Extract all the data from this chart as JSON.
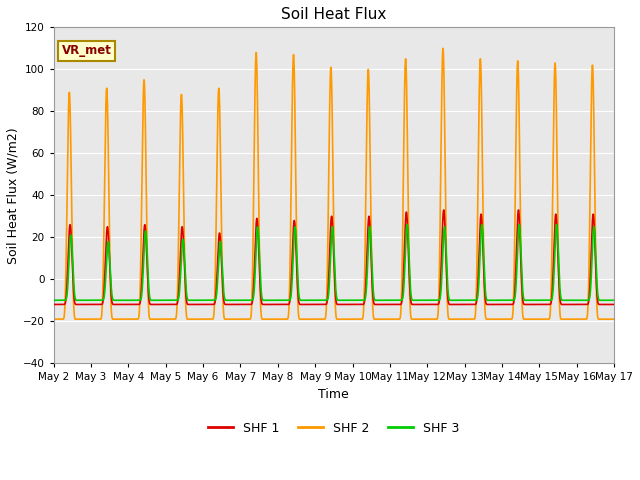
{
  "title": "Soil Heat Flux",
  "xlabel": "Time",
  "ylabel": "Soil Heat Flux (W/m2)",
  "ylim": [
    -40,
    120
  ],
  "yticks": [
    -40,
    -20,
    0,
    20,
    40,
    60,
    80,
    100,
    120
  ],
  "date_labels": [
    "May 2",
    "May 3",
    "May 4",
    "May 5",
    "May 6",
    "May 7",
    "May 8",
    "May 9",
    "May 10",
    "May 11",
    "May 12",
    "May 13",
    "May 14",
    "May 15",
    "May 16",
    "May 17"
  ],
  "colors": {
    "SHF 1": "#dd0000",
    "SHF 2": "#ff9900",
    "SHF 3": "#00cc00"
  },
  "bg_color": "#e8e8e8",
  "fig_bg": "#ffffff",
  "linewidth": 1.2,
  "n_days": 15,
  "points_per_day": 288,
  "orange_peaks": [
    89,
    91,
    95,
    88,
    91,
    108,
    107,
    101,
    100,
    105,
    110,
    105,
    104,
    103,
    102
  ],
  "red_peaks": [
    26,
    25,
    26,
    25,
    22,
    29,
    28,
    30,
    30,
    32,
    33,
    31,
    33,
    31,
    31
  ],
  "green_peaks": [
    21,
    18,
    23,
    19,
    18,
    25,
    25,
    25,
    25,
    26,
    25,
    26,
    26,
    26,
    25
  ],
  "orange_trough": -19,
  "red_trough": -12,
  "green_trough": -10,
  "peak_sharpness": 4.0
}
